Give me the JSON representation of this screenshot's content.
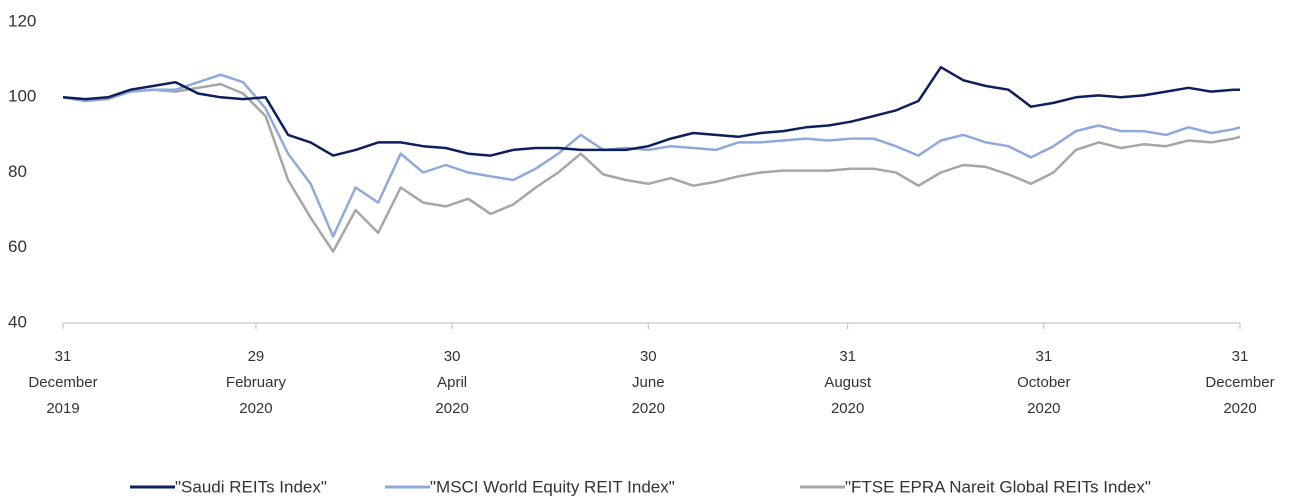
{
  "chart_data": {
    "type": "line",
    "x": [
      "2019-12-31",
      "2020-01-07",
      "2020-01-14",
      "2020-01-21",
      "2020-01-28",
      "2020-02-04",
      "2020-02-11",
      "2020-02-18",
      "2020-02-25",
      "2020-03-03",
      "2020-03-10",
      "2020-03-17",
      "2020-03-24",
      "2020-03-31",
      "2020-04-07",
      "2020-04-14",
      "2020-04-21",
      "2020-04-28",
      "2020-05-05",
      "2020-05-12",
      "2020-05-19",
      "2020-05-26",
      "2020-06-02",
      "2020-06-09",
      "2020-06-16",
      "2020-06-23",
      "2020-06-30",
      "2020-07-07",
      "2020-07-14",
      "2020-07-21",
      "2020-07-28",
      "2020-08-04",
      "2020-08-11",
      "2020-08-18",
      "2020-08-25",
      "2020-09-01",
      "2020-09-08",
      "2020-09-15",
      "2020-09-22",
      "2020-09-29",
      "2020-10-06",
      "2020-10-13",
      "2020-10-20",
      "2020-10-27",
      "2020-11-03",
      "2020-11-10",
      "2020-11-17",
      "2020-11-24",
      "2020-12-01",
      "2020-12-08",
      "2020-12-15",
      "2020-12-22",
      "2020-12-29",
      "2020-12-31"
    ],
    "series": [
      {
        "name": "\"Saudi REITs Index\"",
        "color": "#0d1f5c",
        "values": [
          100,
          99.5,
          100,
          102,
          103,
          104,
          101,
          100,
          99.5,
          100,
          90,
          88,
          84.5,
          86,
          88,
          88,
          87,
          86.5,
          85,
          84.5,
          86,
          86.5,
          86.5,
          86,
          86,
          86,
          87,
          89,
          90.5,
          90,
          89.5,
          90.5,
          91,
          92,
          92.5,
          93.5,
          95,
          96.5,
          99,
          108,
          104.5,
          103,
          102,
          97.5,
          98.5,
          100,
          100.5,
          100,
          100.5,
          101.5,
          102.5,
          101.5,
          102,
          102
        ]
      },
      {
        "name": "\"MSCI World Equity REIT Index\"",
        "color": "#8fa9dc",
        "values": [
          100,
          99,
          100,
          101.5,
          102,
          102,
          104,
          106,
          104,
          97,
          85,
          77,
          63,
          76,
          72,
          85,
          80,
          82,
          80,
          79,
          78,
          81,
          85,
          90,
          86,
          86.5,
          86,
          87,
          86.5,
          86,
          88,
          88,
          88.5,
          89,
          88.5,
          89,
          89,
          87,
          84.5,
          88.5,
          90,
          88,
          87,
          84,
          87,
          91,
          92.5,
          91,
          91,
          90,
          92,
          90.5,
          91.5,
          92
        ]
      },
      {
        "name": "\"FTSE EPRA Nareit Global REITs Index\"",
        "color": "#a6a6a6",
        "values": [
          100,
          99,
          99.5,
          101.5,
          102,
          101.5,
          102.5,
          103.5,
          101,
          95,
          78,
          68,
          59,
          70,
          64,
          76,
          72,
          71,
          73,
          69,
          71.5,
          76,
          80,
          85,
          79.5,
          78,
          77,
          78.5,
          76.5,
          77.5,
          79,
          80,
          80.5,
          80.5,
          80.5,
          81,
          81,
          80,
          76.5,
          80,
          82,
          81.5,
          79.5,
          77,
          80,
          86,
          88,
          86.5,
          87.5,
          87,
          88.5,
          88,
          89,
          89.5
        ]
      }
    ],
    "xlim": [
      "2019-12-31",
      "2020-12-31"
    ],
    "xticks": [
      {
        "value": "2019-12-31",
        "label": "31 December 2019"
      },
      {
        "value": "2020-02-29",
        "label": "29 February 2020"
      },
      {
        "value": "2020-04-30",
        "label": "30 April 2020"
      },
      {
        "value": "2020-06-30",
        "label": "30 June 2020"
      },
      {
        "value": "2020-08-31",
        "label": "31 August 2020"
      },
      {
        "value": "2020-10-31",
        "label": "31 October 2020"
      },
      {
        "value": "2020-12-31",
        "label": "31 December 2020"
      }
    ],
    "ylim": [
      40,
      120
    ],
    "yticks": [
      40,
      60,
      80,
      100,
      120
    ],
    "grid": false,
    "legend": "bottom"
  }
}
